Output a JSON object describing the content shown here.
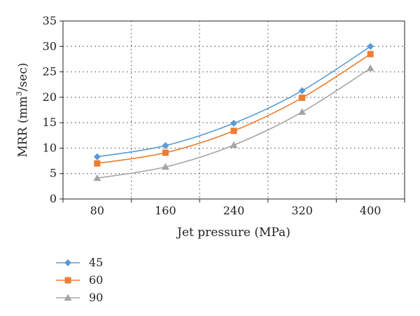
{
  "chart_data": {
    "type": "line",
    "x": [
      80,
      160,
      240,
      320,
      400
    ],
    "categories": [
      "80",
      "160",
      "240",
      "320",
      "400"
    ],
    "series": [
      {
        "name": "45",
        "values": [
          8.3,
          10.5,
          14.9,
          21.3,
          30.0
        ],
        "color": "#5B9BD5",
        "marker": "diamond"
      },
      {
        "name": "60",
        "values": [
          7.0,
          9.1,
          13.4,
          19.9,
          28.5
        ],
        "color": "#ED7D31",
        "marker": "square"
      },
      {
        "name": "90",
        "values": [
          4.1,
          6.3,
          10.6,
          17.1,
          25.7
        ],
        "color": "#A5A5A5",
        "marker": "triangle"
      }
    ],
    "xlabel": "Jet pressure (MPa)",
    "ylabel": {
      "pre": "MRR (mm",
      "sup": "3",
      "post": "/sec)"
    },
    "ylim": [
      0,
      35
    ],
    "yticks": [
      0,
      5,
      10,
      15,
      20,
      25,
      30,
      35
    ],
    "grid": "dotted, horizontal and vertical",
    "legend_position": "bottom-left"
  }
}
